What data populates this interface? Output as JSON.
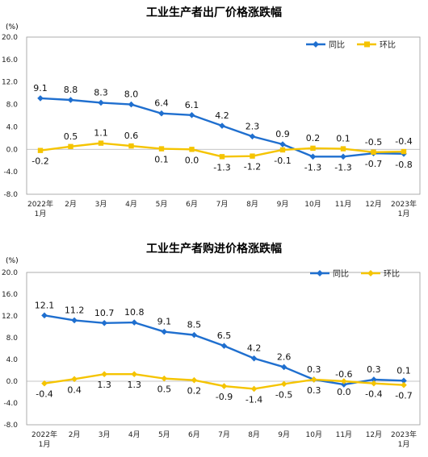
{
  "colors": {
    "yoy": "#1f6fcf",
    "mom": "#f5c400"
  },
  "chart_data": [
    {
      "type": "line",
      "title": "工业生产者出厂价格涨跌幅",
      "unit": "(%)",
      "categories": [
        [
          "2022年",
          "1月"
        ],
        [
          "2月"
        ],
        [
          "3月"
        ],
        [
          "4月"
        ],
        [
          "5月"
        ],
        [
          "6月"
        ],
        [
          "7月"
        ],
        [
          "8月"
        ],
        [
          "9月"
        ],
        [
          "10月"
        ],
        [
          "11月"
        ],
        [
          "12月"
        ],
        [
          "2023年",
          "1月"
        ]
      ],
      "yticks": [
        "-8.0",
        "-4.0",
        "0.0",
        "4.0",
        "8.0",
        "12.0",
        "16.0",
        "20.0"
      ],
      "ylim": [
        -8,
        20
      ],
      "legend_position": "top-right",
      "series": [
        {
          "name": "同比",
          "color": "#1f6fcf",
          "marker": "diamond",
          "values": [
            9.1,
            8.8,
            8.3,
            8.0,
            6.4,
            6.1,
            4.2,
            2.3,
            0.9,
            -1.3,
            -1.3,
            -0.7,
            -0.8
          ],
          "labels": [
            "9.1",
            "8.8",
            "8.3",
            "8.0",
            "6.4",
            "6.1",
            "4.2",
            "2.3",
            "0.9",
            "-1.3",
            "-1.3",
            "-0.7",
            "-0.8"
          ]
        },
        {
          "name": "环比",
          "color": "#f5c400",
          "marker": "square",
          "values": [
            -0.2,
            0.5,
            1.1,
            0.6,
            0.1,
            0.0,
            -1.3,
            -1.2,
            -0.1,
            0.2,
            0.1,
            -0.5,
            -0.4
          ],
          "labels": [
            "-0.2",
            "0.5",
            "1.1",
            "0.6",
            "0.1",
            "0.0",
            "-1.3",
            "-1.2",
            "-0.1",
            "0.2",
            "0.1",
            "-0.5",
            "-0.4"
          ]
        }
      ]
    },
    {
      "type": "line",
      "title": "工业生产者购进价格涨跌幅",
      "unit": "(%)",
      "categories": [
        [
          "2022年",
          "1月"
        ],
        [
          "2月"
        ],
        [
          "3月"
        ],
        [
          "4月"
        ],
        [
          "5月"
        ],
        [
          "6月"
        ],
        [
          "7月"
        ],
        [
          "8月"
        ],
        [
          "9月"
        ],
        [
          "10月"
        ],
        [
          "11月"
        ],
        [
          "12月"
        ],
        [
          "2023年",
          "1月"
        ]
      ],
      "yticks": [
        "-8.0",
        "-4.0",
        "0.0",
        "4.0",
        "8.0",
        "12.0",
        "16.0",
        "20.0"
      ],
      "ylim": [
        -8,
        20
      ],
      "legend_position": "top-right",
      "series": [
        {
          "name": "同比",
          "color": "#1f6fcf",
          "marker": "diamond",
          "values": [
            12.1,
            11.2,
            10.7,
            10.8,
            9.1,
            8.5,
            6.5,
            4.2,
            2.6,
            0.3,
            -0.6,
            0.3,
            0.1
          ],
          "labels": [
            "12.1",
            "11.2",
            "10.7",
            "10.8",
            "9.1",
            "8.5",
            "6.5",
            "4.2",
            "2.6",
            "0.3",
            "-0.6",
            "0.3",
            "0.1"
          ]
        },
        {
          "name": "环比",
          "color": "#f5c400",
          "marker": "diamond",
          "values": [
            -0.4,
            0.4,
            1.3,
            1.3,
            0.5,
            0.2,
            -0.9,
            -1.4,
            -0.5,
            0.3,
            0.0,
            -0.4,
            -0.7
          ],
          "labels": [
            "-0.4",
            "0.4",
            "1.3",
            "1.3",
            "0.5",
            "0.2",
            "-0.9",
            "-1.4",
            "-0.5",
            "0.3",
            "0.0",
            "-0.4",
            "-0.7"
          ]
        }
      ]
    }
  ]
}
